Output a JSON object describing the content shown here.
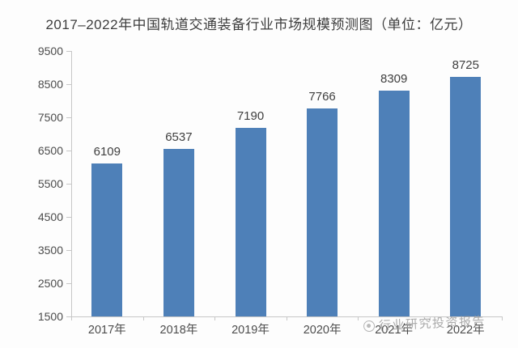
{
  "title": "2017–2022年中国轨道交通装备行业市场规模预测图（单位：亿元）",
  "watermark": {
    "text": "行业研究投资报告"
  },
  "colors": {
    "bar": "#4e80b8",
    "axis": "#c7c7c7",
    "label_text": "#4c4c4c"
  },
  "chart_data": {
    "type": "bar",
    "title": "2017–2022年中国轨道交通装备行业市场规模预测图（单位：亿元）",
    "categories": [
      "2017年",
      "2018年",
      "2019年",
      "2020年",
      "2021年",
      "2022年"
    ],
    "values": [
      6109,
      6537,
      7190,
      7766,
      8309,
      8725
    ],
    "value_labels": [
      "6109",
      "6537",
      "7190",
      "7766",
      "8309",
      "8725"
    ],
    "xlabel": "",
    "ylabel": "",
    "ylim": [
      1500,
      9500
    ],
    "ytick_step": 1000,
    "ytick_labels": [
      "1500",
      "2500",
      "3500",
      "4500",
      "5500",
      "6500",
      "7500",
      "8500",
      "9500"
    ],
    "grid": false,
    "legend_position": "none"
  }
}
